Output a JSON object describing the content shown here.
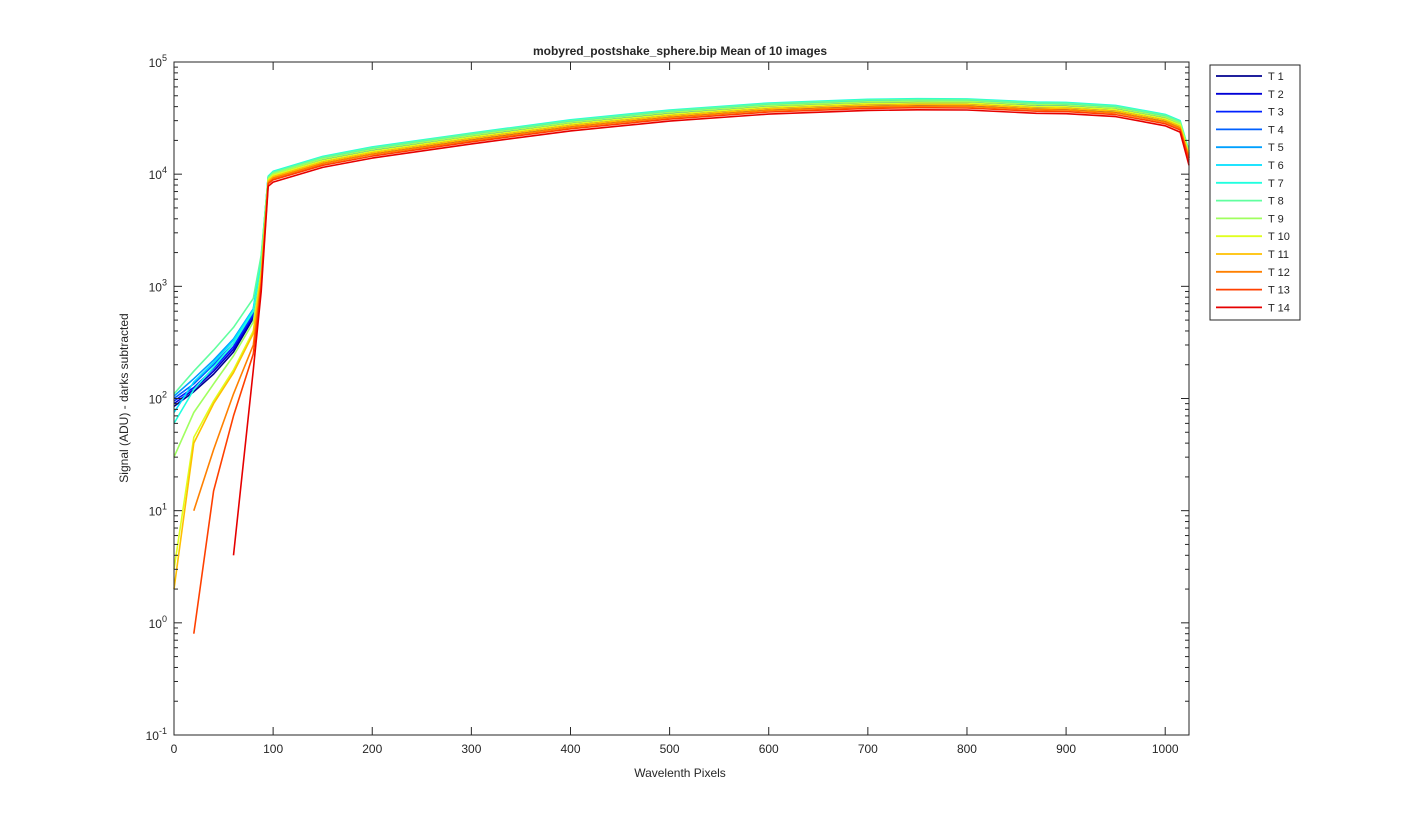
{
  "chart_data": {
    "type": "line",
    "title": "mobyred_postshake_sphere.bip  Mean of 10 images",
    "xlabel": "Wavelenth Pixels",
    "ylabel": "Signal (ADU) - darks subtracted",
    "xlim": [
      0,
      1024
    ],
    "ylim": [
      0.1,
      100000
    ],
    "yscale": "log",
    "grid": false,
    "legend_position": "outside-top-right",
    "x_ticks": [
      0,
      100,
      200,
      300,
      400,
      500,
      600,
      700,
      800,
      900,
      1000
    ],
    "x_tick_labels": [
      "0",
      "100",
      "200",
      "300",
      "400",
      "500",
      "600",
      "700",
      "800",
      "900",
      "1000"
    ],
    "y_ticks": [
      {
        "value": 0.1,
        "base": "10",
        "exp": "-1"
      },
      {
        "value": 1,
        "base": "10",
        "exp": "0"
      },
      {
        "value": 10,
        "base": "10",
        "exp": "1"
      },
      {
        "value": 100,
        "base": "10",
        "exp": "2"
      },
      {
        "value": 1000,
        "base": "10",
        "exp": "3"
      },
      {
        "value": 10000,
        "base": "10",
        "exp": "4"
      },
      {
        "value": 100000,
        "base": "10",
        "exp": "5"
      }
    ],
    "x": [
      0,
      20,
      40,
      60,
      80,
      88,
      95,
      100,
      150,
      200,
      300,
      400,
      500,
      600,
      700,
      750,
      800,
      870,
      900,
      950,
      1000,
      1015,
      1024
    ],
    "series": [
      {
        "name": "T 1",
        "color": "#00008f",
        "values": [
          85,
          115,
          165,
          260,
          520,
          1500,
          8600,
          9300,
          12500,
          15100,
          20200,
          26400,
          32300,
          37300,
          40200,
          40800,
          40600,
          38000,
          37800,
          35500,
          29500,
          26000,
          14000
        ]
      },
      {
        "name": "T 2",
        "color": "#0000d6",
        "values": [
          90,
          120,
          175,
          275,
          540,
          1600,
          8800,
          9500,
          12800,
          15500,
          20700,
          27100,
          33100,
          38200,
          41200,
          41800,
          41600,
          38900,
          38700,
          36400,
          30200,
          26600,
          14300
        ]
      },
      {
        "name": "T 3",
        "color": "#0020ff",
        "values": [
          95,
          125,
          185,
          290,
          560,
          1650,
          9000,
          9700,
          13100,
          15900,
          21200,
          27800,
          34000,
          39200,
          42300,
          42900,
          42700,
          39900,
          39700,
          37300,
          31000,
          27300,
          14700
        ]
      },
      {
        "name": "T 4",
        "color": "#0060ff",
        "values": [
          100,
          135,
          200,
          310,
          590,
          1700,
          9200,
          10000,
          13500,
          16300,
          21800,
          28500,
          34900,
          40300,
          43400,
          44000,
          43800,
          41000,
          40700,
          38300,
          31800,
          28000,
          15100
        ]
      },
      {
        "name": "T 5",
        "color": "#00a0ff",
        "values": [
          105,
          150,
          220,
          340,
          630,
          1800,
          9400,
          10200,
          13800,
          16700,
          22300,
          29200,
          35800,
          41300,
          44500,
          45100,
          44900,
          42000,
          41700,
          39200,
          32600,
          28700,
          15500
        ]
      },
      {
        "name": "T 6",
        "color": "#00e0ff",
        "values": [
          75,
          140,
          210,
          330,
          620,
          1750,
          9500,
          10400,
          14100,
          17100,
          22800,
          29900,
          36600,
          42300,
          45600,
          46200,
          46000,
          43000,
          42700,
          40200,
          33400,
          29400,
          15900
        ]
      },
      {
        "name": "T 7",
        "color": "#20ffdf",
        "values": [
          60,
          120,
          190,
          310,
          600,
          1700,
          9600,
          10600,
          14400,
          17500,
          23300,
          30500,
          37300,
          43100,
          46500,
          47100,
          46900,
          43900,
          43600,
          41000,
          34100,
          30000,
          16200
        ]
      },
      {
        "name": "T 8",
        "color": "#60ff9f",
        "values": [
          110,
          175,
          270,
          430,
          780,
          1900,
          9400,
          10400,
          14200,
          17200,
          23000,
          30100,
          36800,
          42500,
          45800,
          46400,
          46200,
          43200,
          42900,
          40400,
          33600,
          29500,
          16000
        ]
      },
      {
        "name": "T 9",
        "color": "#a0ff5f",
        "values": [
          30,
          75,
          135,
          240,
          480,
          1400,
          9100,
          10100,
          13700,
          16600,
          22200,
          29000,
          35500,
          41000,
          44200,
          44800,
          44600,
          41700,
          41400,
          39000,
          32400,
          28500,
          15400
        ]
      },
      {
        "name": "T 10",
        "color": "#e0ff1f",
        "values": [
          3,
          45,
          95,
          180,
          400,
          1300,
          8900,
          9800,
          13200,
          16000,
          21400,
          28000,
          34200,
          39500,
          42600,
          43200,
          43000,
          40200,
          39900,
          37600,
          31200,
          27500,
          14900
        ]
      },
      {
        "name": "T 11",
        "color": "#ffc000",
        "values": [
          2,
          40,
          90,
          170,
          380,
          1250,
          8700,
          9500,
          12800,
          15500,
          20700,
          27100,
          33100,
          38300,
          41200,
          41800,
          41600,
          38900,
          38600,
          36400,
          30200,
          26600,
          14400
        ]
      },
      {
        "name": "T 12",
        "color": "#ff8000",
        "values": [
          null,
          10,
          35,
          110,
          300,
          1100,
          8400,
          9200,
          12400,
          15000,
          20000,
          26200,
          32000,
          37000,
          39800,
          40400,
          40200,
          37600,
          37300,
          35200,
          29200,
          25700,
          13900
        ]
      },
      {
        "name": "T 13",
        "color": "#ff4000",
        "values": [
          null,
          0.8,
          15,
          70,
          250,
          1000,
          8200,
          8900,
          12000,
          14500,
          19400,
          25400,
          31000,
          35800,
          38600,
          39100,
          38900,
          36400,
          36100,
          34000,
          28200,
          24800,
          13400
        ]
      },
      {
        "name": "T 14",
        "color": "#e60000",
        "values": [
          null,
          null,
          null,
          4,
          180,
          900,
          7800,
          8500,
          11500,
          13900,
          18600,
          24300,
          29700,
          34300,
          37000,
          37500,
          37300,
          34900,
          34600,
          32600,
          27000,
          23700,
          12000
        ]
      }
    ]
  }
}
